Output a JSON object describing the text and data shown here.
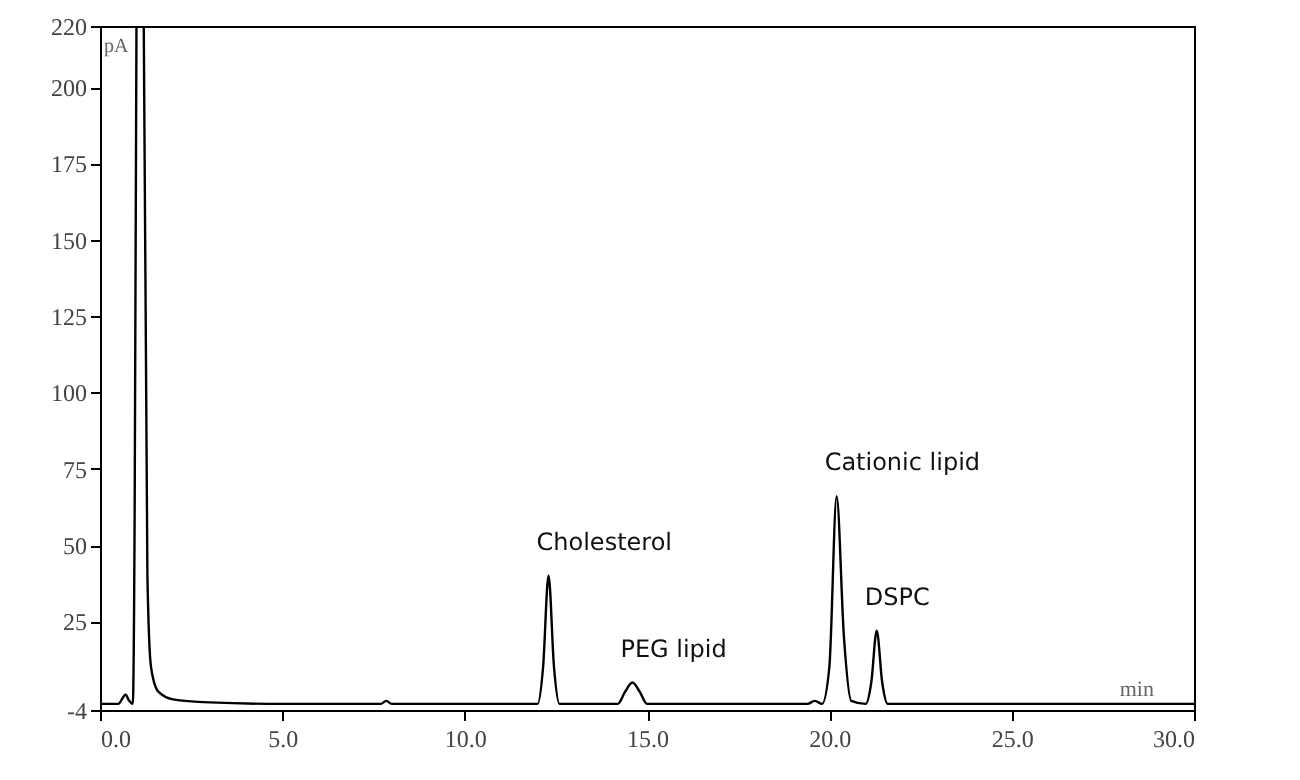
{
  "chart_data": {
    "type": "line",
    "xlabel": "min",
    "ylabel": "pA",
    "x": [
      0,
      0.5,
      0.7,
      0.8,
      0.9,
      0.95,
      1.0,
      1.05,
      1.15,
      1.2,
      1.3,
      1.4,
      1.6,
      2.0,
      3.0,
      5.0,
      7.7,
      7.85,
      8.0,
      12.0,
      12.15,
      12.3,
      12.45,
      12.6,
      14.2,
      14.4,
      14.6,
      14.8,
      15.0,
      19.4,
      19.6,
      19.8,
      20.0,
      20.2,
      20.4,
      20.6,
      21.0,
      21.15,
      21.3,
      21.45,
      21.6,
      30
    ],
    "series": [
      {
        "color": "#000000",
        "values": [
          -2,
          -2,
          1,
          -1,
          -2,
          60,
          220,
          null,
          null,
          220,
          40,
          10,
          2,
          -0.5,
          -1.5,
          -2,
          -2,
          -1,
          -2,
          -2,
          10,
          40,
          10,
          -2,
          -2,
          2,
          5,
          2,
          -2,
          -2,
          -1,
          -2,
          10,
          66,
          20,
          -1,
          -2,
          5,
          22,
          5,
          -2,
          -2
        ]
      }
    ],
    "xlim": [
      0,
      30
    ],
    "ylim": [
      -4,
      220
    ],
    "xticks": [
      {
        "value": 0,
        "label": "0.0"
      },
      {
        "value": 5,
        "label": "5.0"
      },
      {
        "value": 10,
        "label": "10.0"
      },
      {
        "value": 15,
        "label": "15.0"
      },
      {
        "value": 20,
        "label": "20.0"
      },
      {
        "value": 25,
        "label": "25.0"
      },
      {
        "value": 30,
        "label": "30.0"
      }
    ],
    "yticks": [
      -4,
      25,
      50,
      75,
      100,
      125,
      150,
      175,
      200,
      220
    ],
    "annotations": [
      {
        "text": "Cholesterol",
        "x": 12.3,
        "y": 40
      },
      {
        "text": "PEG lipid",
        "x": 14.6,
        "y": 5
      },
      {
        "text": "Cationic lipid",
        "x": 20.2,
        "y": 66
      },
      {
        "text": "DSPC",
        "x": 21.3,
        "y": 22
      }
    ],
    "grid": false,
    "marker": "none",
    "line_style": "solid"
  }
}
